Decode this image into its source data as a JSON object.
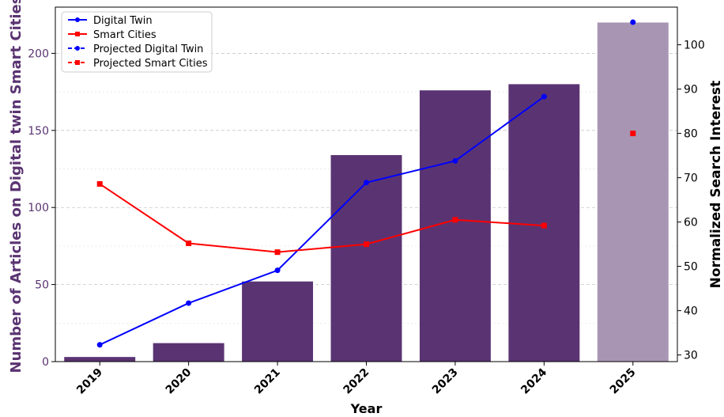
{
  "chart_data": {
    "type": "bar",
    "categories": [
      "2019",
      "2020",
      "2021",
      "2022",
      "2023",
      "2024",
      "2025"
    ],
    "bars": {
      "values": [
        3,
        12,
        52,
        134,
        176,
        180,
        220
      ],
      "projected_index": 6,
      "color": "#5a3472",
      "projected_color": "#a895b4"
    },
    "xlabel": "Year",
    "ylabel_left": "Number of Articles on Digital twin Smart Cities",
    "ylabel_right": "Normalized Search Interest",
    "ylim_left": [
      0,
      230
    ],
    "ylim_right": [
      28.5,
      108.5
    ],
    "yticks_left": [
      "0",
      "50",
      "100",
      "150",
      "200"
    ],
    "yticks_right": [
      "30",
      "40",
      "50",
      "60",
      "70",
      "80",
      "90",
      "100"
    ],
    "grid": true,
    "legend_position": "top-left",
    "series": [
      {
        "name": "Digital Twin",
        "values": [
          32.3,
          41.7,
          49.1,
          68.9,
          73.8,
          88.3,
          null
        ],
        "color": "#0000ff",
        "marker": "circle",
        "line": "solid"
      },
      {
        "name": "Smart Cities",
        "values": [
          68.6,
          55.2,
          53.2,
          55.0,
          60.5,
          59.2,
          null
        ],
        "color": "#ff0000",
        "marker": "square",
        "line": "solid"
      },
      {
        "name": "Projected Digital Twin",
        "values": [
          null,
          null,
          null,
          null,
          null,
          null,
          105.1
        ],
        "color": "#0000ff",
        "marker": "circle",
        "line": "dashed"
      },
      {
        "name": "Projected Smart Cities",
        "values": [
          null,
          null,
          null,
          null,
          null,
          null,
          80.0
        ],
        "color": "#ff0000",
        "marker": "square",
        "line": "dashed"
      }
    ]
  }
}
